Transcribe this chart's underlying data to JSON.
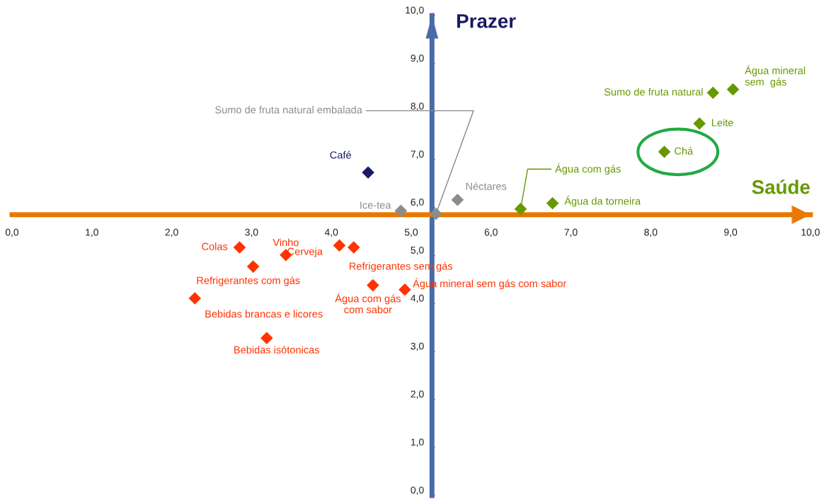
{
  "chart_data": {
    "type": "scatter",
    "xlabel": "Saúde",
    "ylabel": "Prazer",
    "marker": "diamond",
    "grid": false,
    "xlim": [
      0,
      10
    ],
    "ylim": [
      0,
      10
    ],
    "xticks": [
      {
        "value": 0,
        "label": "0,0"
      },
      {
        "value": 1,
        "label": "1,0"
      },
      {
        "value": 2,
        "label": "2,0"
      },
      {
        "value": 3,
        "label": "3,0"
      },
      {
        "value": 4,
        "label": "4,0"
      },
      {
        "value": 5,
        "label": "5,0"
      },
      {
        "value": 6,
        "label": "6,0"
      },
      {
        "value": 7,
        "label": "7,0"
      },
      {
        "value": 8,
        "label": "8,0"
      },
      {
        "value": 9,
        "label": "9,0"
      },
      {
        "value": 10,
        "label": "10,0"
      }
    ],
    "yticks": [
      {
        "value": 0,
        "label": "0,0"
      },
      {
        "value": 1,
        "label": "1,0"
      },
      {
        "value": 2,
        "label": "2,0"
      },
      {
        "value": 3,
        "label": "3,0"
      },
      {
        "value": 4,
        "label": "4,0"
      },
      {
        "value": 5,
        "label": "5,0"
      },
      {
        "value": 6,
        "label": "6,0"
      },
      {
        "value": 7,
        "label": "7,0"
      },
      {
        "value": 8,
        "label": "8,0"
      },
      {
        "value": 9,
        "label": "9,0"
      },
      {
        "value": 10,
        "label": "10,0"
      }
    ],
    "series": [
      {
        "color": "#1a1a66",
        "x": [
          4.46
        ],
        "values": [
          6.73
        ]
      },
      {
        "color": "#8c8c8c",
        "x": [
          4.87,
          5.31,
          5.58
        ],
        "values": [
          5.93,
          5.87,
          6.16
        ]
      },
      {
        "color": "#669900",
        "x": [
          6.37,
          6.77,
          8.17,
          8.61,
          8.78,
          9.03
        ],
        "values": [
          5.97,
          6.09,
          7.16,
          7.75,
          8.39,
          8.46
        ]
      },
      {
        "color": "#ff3300",
        "x": [
          2.85,
          3.43,
          3.02,
          2.29,
          3.19,
          4.1,
          4.28,
          4.52,
          4.92
        ],
        "values": [
          5.17,
          5.01,
          4.77,
          4.11,
          3.28,
          5.21,
          5.17,
          4.38,
          4.29
        ]
      }
    ],
    "annotations": [
      {
        "text": "Café",
        "x": 4.46,
        "y": 6.73
      },
      {
        "text": "Ice-tea",
        "x": 4.87,
        "y": 5.93
      },
      {
        "text": "Sumo de fruta natural embalada",
        "x": 5.31,
        "y": 5.87
      },
      {
        "text": "Néctares",
        "x": 5.58,
        "y": 6.16
      },
      {
        "text": "Água com gás",
        "x": 6.37,
        "y": 5.97
      },
      {
        "text": "Água da torneira",
        "x": 6.77,
        "y": 6.09
      },
      {
        "text": "Chá",
        "x": 8.17,
        "y": 7.16
      },
      {
        "text": "Leite",
        "x": 8.61,
        "y": 7.75
      },
      {
        "text": "Sumo de fruta natural",
        "x": 8.78,
        "y": 8.39
      },
      {
        "text": "Água mineral\nsem  gás",
        "x": 9.03,
        "y": 8.46
      },
      {
        "text": "Colas",
        "x": 2.85,
        "y": 5.17
      },
      {
        "text": "Vinho",
        "x": 3.43,
        "y": 5.01
      },
      {
        "text": "Refrigerantes com gás",
        "x": 3.02,
        "y": 4.77
      },
      {
        "text": "Bebidas brancas e licores",
        "x": 2.29,
        "y": 4.11
      },
      {
        "text": "Bebidas isótonicas",
        "x": 3.19,
        "y": 3.28
      },
      {
        "text": "Cerveja",
        "x": 4.1,
        "y": 5.21
      },
      {
        "text": "Refrigerantes sem gás",
        "x": 4.28,
        "y": 5.17
      },
      {
        "text": "Água com gás\ncom sabor",
        "x": 4.52,
        "y": 4.38
      },
      {
        "text": "Água mineral sem gás com sabor",
        "x": 4.92,
        "y": 4.29
      }
    ]
  }
}
